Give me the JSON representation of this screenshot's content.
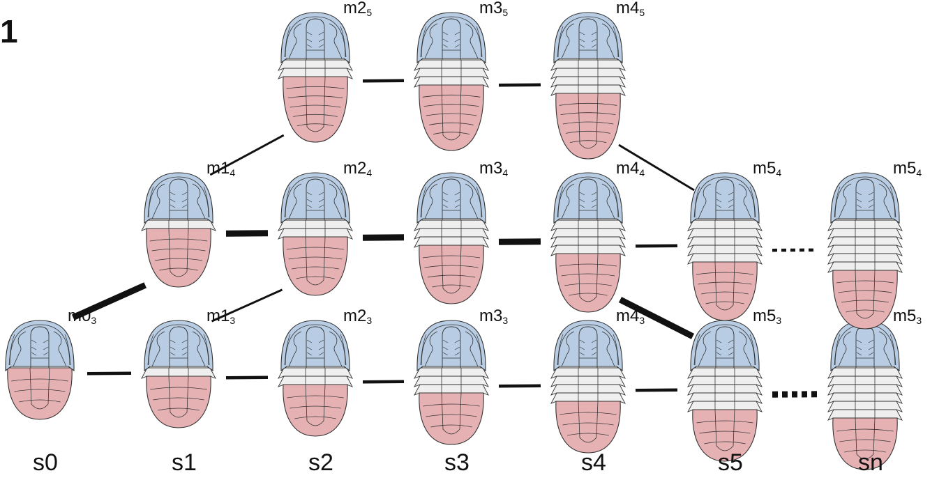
{
  "panel_label": "1",
  "colors": {
    "cephalon": "#b8cde4",
    "thorax": "#efefef",
    "pygidium": "#e6b1b3",
    "outline": "#333333",
    "connector": "#111111"
  },
  "stages": [
    {
      "key": "s0",
      "label": "s0"
    },
    {
      "key": "s1",
      "label": "s1"
    },
    {
      "key": "s2",
      "label": "s2"
    },
    {
      "key": "s3",
      "label": "s3"
    },
    {
      "key": "s4",
      "label": "s4"
    },
    {
      "key": "s5",
      "label": "s5"
    },
    {
      "key": "sn",
      "label": "sn"
    }
  ],
  "specimens": [
    {
      "id": "m0_3",
      "name": "m0",
      "sub": "3",
      "stage": 0,
      "row": 3,
      "thorax_segments": 0,
      "pygidium_segments": 3
    },
    {
      "id": "m1_3",
      "name": "m1",
      "sub": "3",
      "stage": 1,
      "row": 3,
      "thorax_segments": 1,
      "pygidium_segments": 3
    },
    {
      "id": "m1_4",
      "name": "m1",
      "sub": "4",
      "stage": 1,
      "row": 4,
      "thorax_segments": 1,
      "pygidium_segments": 4
    },
    {
      "id": "m2_3",
      "name": "m2",
      "sub": "3",
      "stage": 2,
      "row": 3,
      "thorax_segments": 2,
      "pygidium_segments": 3
    },
    {
      "id": "m2_4",
      "name": "m2",
      "sub": "4",
      "stage": 2,
      "row": 4,
      "thorax_segments": 2,
      "pygidium_segments": 4
    },
    {
      "id": "m2_5",
      "name": "m2",
      "sub": "5",
      "stage": 2,
      "row": 5,
      "thorax_segments": 2,
      "pygidium_segments": 5
    },
    {
      "id": "m3_3",
      "name": "m3",
      "sub": "3",
      "stage": 3,
      "row": 3,
      "thorax_segments": 3,
      "pygidium_segments": 3
    },
    {
      "id": "m3_4",
      "name": "m3",
      "sub": "4",
      "stage": 3,
      "row": 4,
      "thorax_segments": 3,
      "pygidium_segments": 4
    },
    {
      "id": "m3_5",
      "name": "m3",
      "sub": "5",
      "stage": 3,
      "row": 5,
      "thorax_segments": 3,
      "pygidium_segments": 5
    },
    {
      "id": "m4_3",
      "name": "m4",
      "sub": "3",
      "stage": 4,
      "row": 3,
      "thorax_segments": 4,
      "pygidium_segments": 3
    },
    {
      "id": "m4_4",
      "name": "m4",
      "sub": "4",
      "stage": 4,
      "row": 4,
      "thorax_segments": 4,
      "pygidium_segments": 4
    },
    {
      "id": "m4_5",
      "name": "m4",
      "sub": "5",
      "stage": 4,
      "row": 5,
      "thorax_segments": 4,
      "pygidium_segments": 5
    },
    {
      "id": "m5_3",
      "name": "m5",
      "sub": "3",
      "stage": 5,
      "row": 3,
      "thorax_segments": 5,
      "pygidium_segments": 3
    },
    {
      "id": "m5_4",
      "name": "m5",
      "sub": "4",
      "stage": 5,
      "row": 4,
      "thorax_segments": 5,
      "pygidium_segments": 4
    },
    {
      "id": "mn_3",
      "name": "m5",
      "sub": "3",
      "stage": 6,
      "row": 3,
      "thorax_segments": 6,
      "pygidium_segments": 3
    },
    {
      "id": "mn_4",
      "name": "m5",
      "sub": "4",
      "stage": 6,
      "row": 4,
      "thorax_segments": 6,
      "pygidium_segments": 4
    }
  ],
  "connections": [
    {
      "from": "m0_3",
      "to": "m1_3",
      "weight": "medium",
      "style": "solid"
    },
    {
      "from": "m0_3",
      "to": "m1_4",
      "weight": "heavy",
      "style": "solid"
    },
    {
      "from": "m1_3",
      "to": "m2_3",
      "weight": "medium",
      "style": "solid"
    },
    {
      "from": "m1_3",
      "to": "m2_4",
      "weight": "thin",
      "style": "solid"
    },
    {
      "from": "m1_4",
      "to": "m2_4",
      "weight": "heavy",
      "style": "solid"
    },
    {
      "from": "m1_4",
      "to": "m2_5",
      "weight": "thin",
      "style": "solid"
    },
    {
      "from": "m2_3",
      "to": "m3_3",
      "weight": "medium",
      "style": "solid"
    },
    {
      "from": "m2_4",
      "to": "m3_4",
      "weight": "heavy",
      "style": "solid"
    },
    {
      "from": "m2_5",
      "to": "m3_5",
      "weight": "medium",
      "style": "solid"
    },
    {
      "from": "m3_3",
      "to": "m4_3",
      "weight": "medium",
      "style": "solid"
    },
    {
      "from": "m3_4",
      "to": "m4_4",
      "weight": "heavy",
      "style": "solid"
    },
    {
      "from": "m3_5",
      "to": "m4_5",
      "weight": "medium",
      "style": "solid"
    },
    {
      "from": "m4_3",
      "to": "m5_3",
      "weight": "medium",
      "style": "solid"
    },
    {
      "from": "m4_4",
      "to": "m5_4",
      "weight": "medium",
      "style": "solid"
    },
    {
      "from": "m4_4",
      "to": "m5_3",
      "weight": "heavy",
      "style": "solid"
    },
    {
      "from": "m4_5",
      "to": "m5_4",
      "weight": "thin",
      "style": "solid"
    },
    {
      "from": "m5_4",
      "to": "mn_4",
      "weight": "medium",
      "style": "dashed"
    },
    {
      "from": "m5_3",
      "to": "mn_3",
      "weight": "heavy",
      "style": "dashed"
    }
  ]
}
